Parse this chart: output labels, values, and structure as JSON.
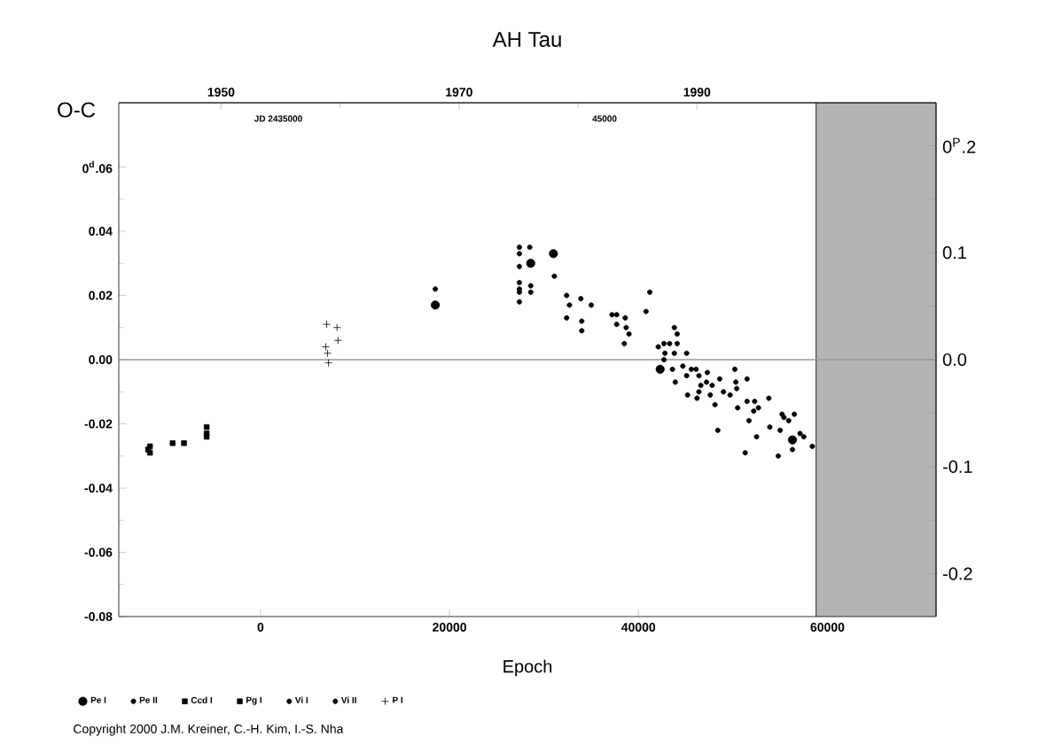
{
  "chart_data": {
    "type": "scatter",
    "title": "AH Tau",
    "xlabel": "Epoch",
    "ylabel": "O-C",
    "xlim": [
      -15000,
      71500
    ],
    "xticks": [
      0,
      20000,
      40000,
      60000
    ],
    "ylim": [
      -0.08,
      0.08
    ],
    "yticks": [
      -0.08,
      {
        "value": -0.06,
        "label": "-0.06"
      },
      {
        "value": -0.04,
        "label": "-0.04"
      },
      {
        "value": -0.02,
        "label": "-0.02"
      },
      {
        "value": 0,
        "label": "0.00"
      },
      0.02,
      0.04,
      {
        "value": 0.06,
        "label": "0$^{d}$.06"
      }
    ],
    "y2lim": [
      -0.24,
      0.24
    ],
    "y2ticks": [
      -0.2,
      -0.1,
      {
        "value": 0,
        "label": "0.0"
      },
      0.1,
      {
        "value": 0.2,
        "label": "0$^{P}$.2"
      }
    ],
    "x2lim": [
      1941.4,
      2010.1
    ],
    "x2ticks": [
      1950,
      1970,
      1990
    ],
    "grid": false,
    "legend": "bottom",
    "ref_lines": [
      {
        "axis": "y",
        "value": 0,
        "color": "#999999"
      }
    ],
    "bands": [
      {
        "axis": "x",
        "from": 58800,
        "to": 71500,
        "color": "#b4b4b4"
      }
    ],
    "annotations": [
      "Copyright 2000 J.M. Kreiner, C.-H. Kim, I.-S. Nha",
      "JD 2435000",
      "45000"
    ],
    "series": [
      {
        "name": "Pe I",
        "color": "#000000",
        "marker": "circle",
        "x": [
          18500,
          28600,
          31000,
          42300,
          56300
        ],
        "values": [
          0.017,
          0.03,
          0.033,
          -0.003,
          -0.025
        ]
      },
      {
        "name": "Pe II",
        "color": "#000000",
        "marker": "circle",
        "x": [
          28500,
          27400,
          32400,
          37200,
          37700,
          44100,
          44100,
          42800,
          42700,
          43900,
          44700,
          45100,
          45100,
          45600,
          46100,
          45200,
          47300,
          47600,
          49000,
          50300,
          51500,
          51500,
          52200,
          51700,
          53800,
          53900,
          55400,
          56300,
          57500,
          54800
        ],
        "values": [
          0.035,
          0.029,
          0.02,
          0.014,
          0.014,
          0.008,
          0.005,
          0.002,
          0.0,
          -0.007,
          -0.002,
          0.002,
          -0.005,
          -0.003,
          -0.003,
          -0.011,
          -0.004,
          -0.011,
          -0.01,
          -0.007,
          -0.006,
          -0.013,
          -0.016,
          -0.019,
          -0.012,
          -0.021,
          -0.018,
          -0.028,
          -0.024,
          -0.03
        ]
      },
      {
        "name": "Ccd I",
        "color": "#000000",
        "marker": "square",
        "x": [
          -11700,
          -11700,
          -11900,
          -9300,
          -8100
        ],
        "values": [
          -0.027,
          -0.029,
          -0.028,
          -0.026,
          -0.026
        ]
      },
      {
        "name": "Pg I",
        "color": "#000000",
        "marker": "square",
        "x": [
          -5700,
          -5700,
          -5700
        ],
        "values": [
          -0.021,
          -0.023,
          -0.024
        ]
      },
      {
        "name": "Vi I",
        "color": "#000000",
        "marker": "circle",
        "x": [
          18500,
          27400,
          27400,
          27400,
          27400,
          27400,
          27400,
          28600,
          28600,
          31100,
          32700,
          32400,
          33900,
          35000,
          34000,
          34000,
          38600,
          38700,
          38500,
          40800,
          42100,
          42700,
          43300,
          43800,
          43800,
          43600,
          46400,
          46600,
          46400,
          46200,
          47200,
          47800,
          48600,
          48100,
          48400,
          50200,
          50400,
          49700,
          50500,
          52300,
          52700,
          52500,
          51300,
          55200,
          56500,
          55900,
          55000,
          57100,
          58400
        ],
        "values": [
          0.022,
          0.035,
          0.033,
          0.024,
          0.022,
          0.021,
          0.018,
          0.023,
          0.021,
          0.026,
          0.017,
          0.013,
          0.019,
          0.017,
          0.012,
          0.009,
          0.013,
          0.01,
          0.005,
          0.015,
          0.004,
          0.005,
          0.005,
          0.01,
          0.002,
          -0.003,
          -0.005,
          -0.008,
          -0.01,
          -0.012,
          -0.007,
          -0.008,
          -0.006,
          -0.014,
          -0.022,
          -0.003,
          -0.009,
          -0.011,
          -0.015,
          -0.013,
          -0.015,
          -0.024,
          -0.029,
          -0.017,
          -0.017,
          -0.019,
          -0.022,
          -0.023,
          -0.027
        ]
      },
      {
        "name": "Vi II",
        "color": "#000000",
        "marker": "circle",
        "x": [
          37700,
          39000,
          41200
        ],
        "values": [
          0.011,
          0.008,
          0.021
        ]
      },
      {
        "name": "P I",
        "color": "#000000",
        "marker": "cross",
        "x": [
          7000,
          8100,
          8200,
          6900,
          7100,
          7200
        ],
        "values": [
          0.011,
          0.01,
          0.006,
          0.004,
          0.002,
          -0.001
        ]
      }
    ]
  }
}
